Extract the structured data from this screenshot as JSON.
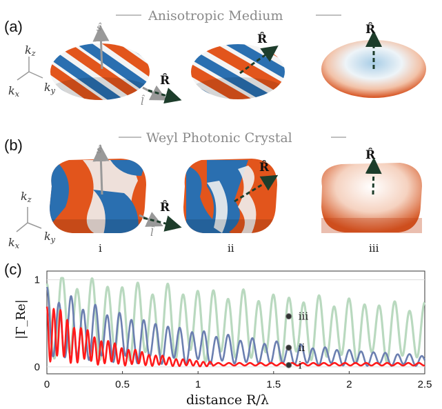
{
  "panels": {
    "a_label": "(a)",
    "b_label": "(b)",
    "c_label": "(c)"
  },
  "section_a": {
    "title": "Anisotropic Medium"
  },
  "section_b": {
    "title": "Weyl Photonic Crystal"
  },
  "axes_labels": {
    "kz": "k",
    "kz_sub": "z",
    "kx": "k",
    "kx_sub": "x",
    "ky": "k",
    "ky_sub": "y"
  },
  "vectors": {
    "s": "ŝ",
    "l": "l̂",
    "R": "R̂"
  },
  "columns": [
    "i",
    "ii",
    "iii"
  ],
  "colors": {
    "orange": "#e2551c",
    "blue": "#2a6fb0",
    "red": "#ff1a1a",
    "slate": "#6b7fb0",
    "green": "#b9d9bf"
  },
  "chart_data": {
    "type": "line",
    "xlabel": "distance R/λ",
    "ylabel": "|Γ_Re|",
    "xlim": [
      0,
      2.5
    ],
    "ylim": [
      -0.08,
      1.1
    ],
    "xticks": [
      "0",
      "0.5",
      "1",
      "1.5",
      "2",
      "2.5"
    ],
    "yticks": [
      "0",
      "1"
    ],
    "grid": true,
    "markers": [
      {
        "name": "iii",
        "x": 1.6,
        "y": 0.58
      },
      {
        "name": "ii",
        "x": 1.6,
        "y": 0.22
      },
      {
        "name": "i",
        "x": 1.6,
        "y": 0.02
      }
    ],
    "series": [
      {
        "id": "green",
        "color": "#b9d9bf",
        "amp0": 1.0,
        "decay": 0.15,
        "period": 0.1,
        "floor": 0.0
      },
      {
        "id": "slate",
        "color": "#6b7fb0",
        "amp0": 0.85,
        "decay": 0.75,
        "period": 0.08,
        "floor": 0.0
      },
      {
        "id": "red",
        "color": "#ff1a1a",
        "amp0": 0.75,
        "decay": 2.4,
        "period": 0.045,
        "floor": 0.0
      }
    ]
  }
}
